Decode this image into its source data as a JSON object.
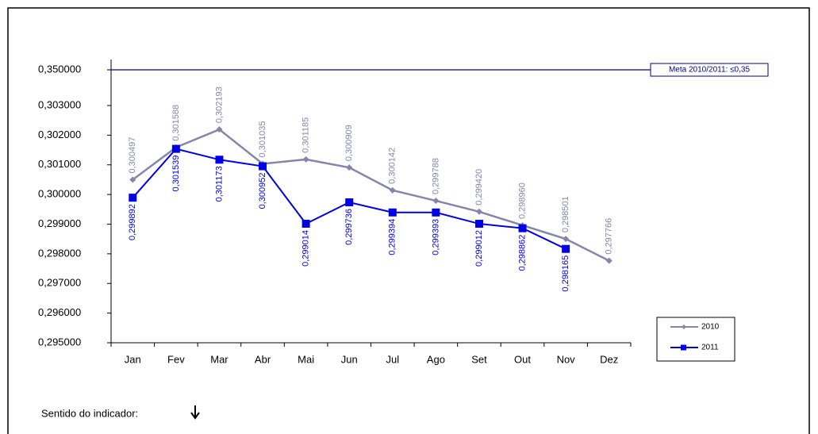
{
  "chart_data": {
    "type": "line",
    "categories": [
      "Jan",
      "Fev",
      "Mar",
      "Abr",
      "Mai",
      "Jun",
      "Jul",
      "Ago",
      "Set",
      "Out",
      "Nov",
      "Dez"
    ],
    "series": [
      {
        "name": "2010",
        "color": "#8584ac",
        "values": [
          0.300497,
          0.301588,
          0.302193,
          0.301035,
          0.301185,
          0.300909,
          0.300142,
          0.299788,
          0.29942,
          0.29896,
          0.298501,
          0.297766
        ],
        "value_labels": [
          "0,300497",
          "0,301588",
          "0,302193",
          "0,301035",
          "0,301185",
          "0,300909",
          "0,300142",
          "0,299788",
          "0,299420",
          "0,298960",
          "0,298501",
          "0,297766"
        ]
      },
      {
        "name": "2011",
        "color": "#0000e6",
        "values": [
          0.299892,
          0.301539,
          0.301173,
          0.300952,
          0.299014,
          0.299736,
          0.299394,
          0.299393,
          0.299012,
          0.298862,
          0.298165,
          null
        ],
        "value_labels": [
          "0,299892",
          "0,301539",
          "0,301173",
          "0,300952",
          "0,299014",
          "0,299736",
          "0,299394",
          "0,299393",
          "0,299012",
          "0,298862",
          "0,298165",
          null
        ]
      }
    ],
    "ylim": [
      0.295,
      0.35
    ],
    "yticks": [
      {
        "value": 0.295,
        "label": "0,295000"
      },
      {
        "value": 0.296,
        "label": "0,296000"
      },
      {
        "value": 0.297,
        "label": "0,297000"
      },
      {
        "value": 0.298,
        "label": "0,298000"
      },
      {
        "value": 0.299,
        "label": "0,299000"
      },
      {
        "value": 0.3,
        "label": "0,300000"
      },
      {
        "value": 0.301,
        "label": "0,301000"
      },
      {
        "value": 0.302,
        "label": "0,302000"
      },
      {
        "value": 0.303,
        "label": "0,303000"
      },
      {
        "value": 0.35,
        "label": "0,350000"
      }
    ],
    "target": {
      "value": 0.35,
      "label": "Meta 2010/2011:  ≤0,35"
    },
    "legend": "right",
    "footer": "Sentido do indicador:"
  }
}
